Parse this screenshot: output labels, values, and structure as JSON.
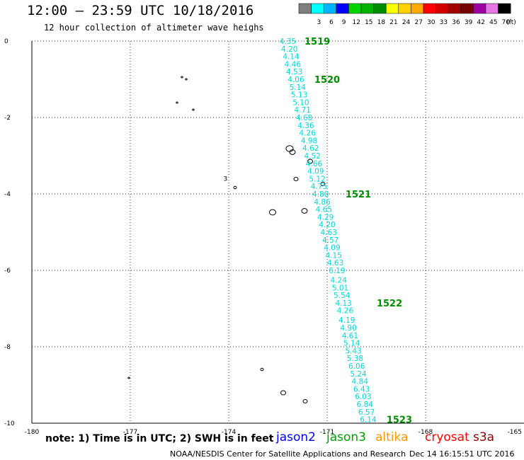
{
  "header": {
    "title": "12:00 – 23:59 UTC 10/18/2016",
    "subtitle": "12 hour collection of altimeter wave heighs"
  },
  "legend": {
    "unit_label": "(ft)",
    "swatches": [
      {
        "label": "",
        "color": "#7f7f7f"
      },
      {
        "label": "3",
        "color": "#00ffff"
      },
      {
        "label": "6",
        "color": "#00b4ff"
      },
      {
        "label": "9",
        "color": "#0000ff"
      },
      {
        "label": "12",
        "color": "#00d200"
      },
      {
        "label": "15",
        "color": "#00b400"
      },
      {
        "label": "18",
        "color": "#008c00"
      },
      {
        "label": "21",
        "color": "#ffff00"
      },
      {
        "label": "24",
        "color": "#ffd200"
      },
      {
        "label": "27",
        "color": "#ffaa00"
      },
      {
        "label": "30",
        "color": "#ff0000"
      },
      {
        "label": "33",
        "color": "#d20000"
      },
      {
        "label": "36",
        "color": "#a00000"
      },
      {
        "label": "39",
        "color": "#780000"
      },
      {
        "label": "42",
        "color": "#a000a0"
      },
      {
        "label": "45",
        "color": "#e678e6"
      },
      {
        "label": "70",
        "color": "#000000"
      }
    ]
  },
  "footer": {
    "note": "note: 1) Time is in UTC; 2) SWH is in feet",
    "satellites": [
      {
        "name": "jason2",
        "color": "#0000ff"
      },
      {
        "name": "jason3",
        "color": "#00a000"
      },
      {
        "name": "altika",
        "color": "#ff9900"
      },
      {
        "name": "cryosat",
        "color": "#ff0000"
      },
      {
        "name": "s3a",
        "color": "#8b0000"
      }
    ],
    "credit": "NOAA/NESDIS Center for Satellite Applications and Research",
    "generated": "Dec 14 16:15:51 UTC 2016"
  },
  "chart_data": {
    "type": "scatter",
    "title": "12:00 – 23:59 UTC 10/18/2016",
    "subtitle": "12 hour collection of altimeter wave heighs",
    "xlim": [
      -180,
      -165
    ],
    "ylim": [
      -10,
      0
    ],
    "x_ticks": [
      "-180",
      "-177",
      "-174",
      "-171",
      "-168",
      "-165"
    ],
    "y_ticks": [
      "0",
      "-2",
      "-4",
      "-6",
      "-8",
      "-10"
    ],
    "grid": true,
    "grid_style": "dotted",
    "value_unit": "ft",
    "series": [
      {
        "satellite": "jason3",
        "label_color": "#00d8d8",
        "points": [
          {
            "lon": -172.2,
            "lat": 0.0,
            "swh": "4.35"
          },
          {
            "lon": -172.15,
            "lat": -0.2,
            "swh": "4.20"
          },
          {
            "lon": -172.1,
            "lat": -0.4,
            "swh": "4.14"
          },
          {
            "lon": -172.05,
            "lat": -0.6,
            "swh": "4.46"
          },
          {
            "lon": -172.0,
            "lat": -0.8,
            "swh": "4.53"
          },
          {
            "lon": -171.95,
            "lat": -1.0,
            "swh": "4.06"
          },
          {
            "lon": -171.9,
            "lat": -1.2,
            "swh": "5.14"
          },
          {
            "lon": -171.85,
            "lat": -1.4,
            "swh": "5.13"
          },
          {
            "lon": -171.8,
            "lat": -1.6,
            "swh": "5.10"
          },
          {
            "lon": -171.75,
            "lat": -1.8,
            "swh": "4.71"
          },
          {
            "lon": -171.7,
            "lat": -2.0,
            "swh": "4.68"
          },
          {
            "lon": -171.65,
            "lat": -2.2,
            "swh": "4.36"
          },
          {
            "lon": -171.6,
            "lat": -2.4,
            "swh": "4.26"
          },
          {
            "lon": -171.55,
            "lat": -2.6,
            "swh": "4.98"
          },
          {
            "lon": -171.5,
            "lat": -2.8,
            "swh": "4.62"
          },
          {
            "lon": -171.45,
            "lat": -3.0,
            "swh": "4.52"
          },
          {
            "lon": -171.4,
            "lat": -3.2,
            "swh": "4.66"
          },
          {
            "lon": -171.35,
            "lat": -3.4,
            "swh": "4.09"
          },
          {
            "lon": -171.3,
            "lat": -3.6,
            "swh": "5.12"
          },
          {
            "lon": -171.25,
            "lat": -3.8,
            "swh": "4.75"
          },
          {
            "lon": -171.2,
            "lat": -4.0,
            "swh": "4.80"
          },
          {
            "lon": -171.15,
            "lat": -4.2,
            "swh": "4.86"
          },
          {
            "lon": -171.1,
            "lat": -4.4,
            "swh": "4.65"
          },
          {
            "lon": -171.05,
            "lat": -4.6,
            "swh": "4.29"
          },
          {
            "lon": -171.0,
            "lat": -4.8,
            "swh": "4.20"
          },
          {
            "lon": -170.95,
            "lat": -5.0,
            "swh": "4.63"
          },
          {
            "lon": -170.9,
            "lat": -5.2,
            "swh": "4.57"
          },
          {
            "lon": -170.85,
            "lat": -5.4,
            "swh": "4.09"
          },
          {
            "lon": -170.8,
            "lat": -5.6,
            "swh": "4.15"
          },
          {
            "lon": -170.75,
            "lat": -5.8,
            "swh": "4.63"
          },
          {
            "lon": -170.7,
            "lat": -6.0,
            "swh": "6.19"
          },
          {
            "lon": -170.65,
            "lat": -6.25,
            "swh": "4.24"
          },
          {
            "lon": -170.6,
            "lat": -6.45,
            "swh": "5.01"
          },
          {
            "lon": -170.55,
            "lat": -6.65,
            "swh": "5.54"
          },
          {
            "lon": -170.5,
            "lat": -6.85,
            "swh": "4.13"
          },
          {
            "lon": -170.45,
            "lat": -7.05,
            "swh": "4.26"
          },
          {
            "lon": -170.4,
            "lat": -7.3,
            "swh": "4.19"
          },
          {
            "lon": -170.35,
            "lat": -7.5,
            "swh": "4.90"
          },
          {
            "lon": -170.3,
            "lat": -7.7,
            "swh": "4.61"
          },
          {
            "lon": -170.25,
            "lat": -7.9,
            "swh": "5.14"
          },
          {
            "lon": -170.2,
            "lat": -8.1,
            "swh": "5.43"
          },
          {
            "lon": -170.15,
            "lat": -8.3,
            "swh": "5.38"
          },
          {
            "lon": -170.1,
            "lat": -8.5,
            "swh": "6.06"
          },
          {
            "lon": -170.05,
            "lat": -8.7,
            "swh": "5.24"
          },
          {
            "lon": -170.0,
            "lat": -8.9,
            "swh": "4.84"
          },
          {
            "lon": -169.95,
            "lat": -9.1,
            "swh": "6.43"
          },
          {
            "lon": -169.9,
            "lat": -9.3,
            "swh": "6.03"
          },
          {
            "lon": -169.85,
            "lat": -9.5,
            "swh": "6.84"
          },
          {
            "lon": -169.8,
            "lat": -9.7,
            "swh": "6.57"
          },
          {
            "lon": -169.75,
            "lat": -9.9,
            "swh": "6.14"
          }
        ],
        "time_labels": [
          {
            "lon": -171.3,
            "lat": 0.0,
            "text": "1519"
          },
          {
            "lon": -171.0,
            "lat": -1.0,
            "text": "1520"
          },
          {
            "lon": -170.05,
            "lat": -4.0,
            "text": "1521"
          },
          {
            "lon": -169.1,
            "lat": -6.85,
            "text": "1522"
          },
          {
            "lon": -168.8,
            "lat": -9.9,
            "text": "1523"
          }
        ],
        "time_label_color": "#008c00"
      }
    ],
    "text_marks": [
      {
        "lon": -174.1,
        "lat": -3.6,
        "text": "3"
      }
    ]
  }
}
